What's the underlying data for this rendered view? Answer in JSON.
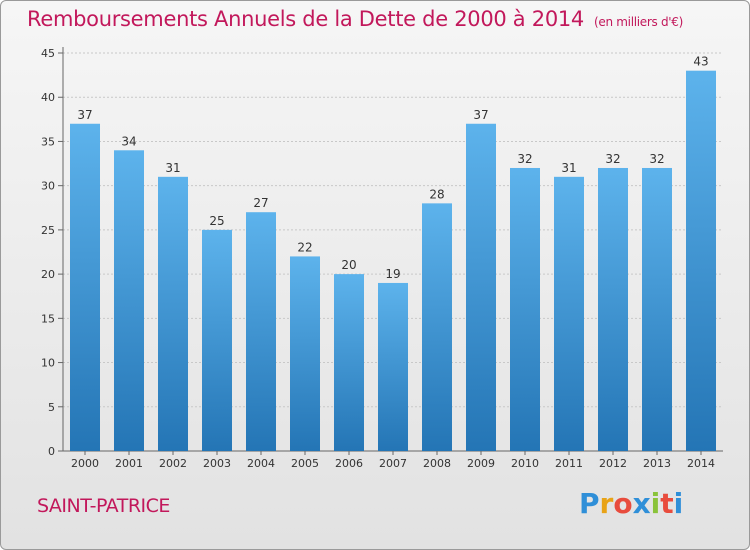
{
  "chart_data": {
    "type": "bar",
    "title": "Remboursements Annuels de la Dette de 2000 à 2014",
    "subtitle": "(en milliers d'€)",
    "categories": [
      "2000",
      "2001",
      "2002",
      "2003",
      "2004",
      "2005",
      "2006",
      "2007",
      "2008",
      "2009",
      "2010",
      "2011",
      "2012",
      "2013",
      "2014"
    ],
    "values": [
      37,
      34,
      31,
      25,
      27,
      22,
      20,
      19,
      28,
      37,
      32,
      31,
      32,
      32,
      43
    ],
    "ylim": [
      0,
      45
    ],
    "yticks": [
      0,
      5,
      10,
      15,
      20,
      25,
      30,
      35,
      40,
      45
    ],
    "grid": true,
    "xlabel": "",
    "ylabel": ""
  },
  "commune": "SAINT-PATRICE",
  "logo": {
    "letters": [
      "P",
      "r",
      "o",
      "x",
      "i",
      "t",
      "i"
    ],
    "colors": [
      "#2f8fd8",
      "#e8a317",
      "#e84c3d",
      "#2f8fd8",
      "#8ac33a",
      "#e84c3d",
      "#2f8fd8"
    ]
  },
  "colors": {
    "bar_top": "#5db3ec",
    "bar_bottom": "#2475b5",
    "accent": "#c2185b"
  }
}
